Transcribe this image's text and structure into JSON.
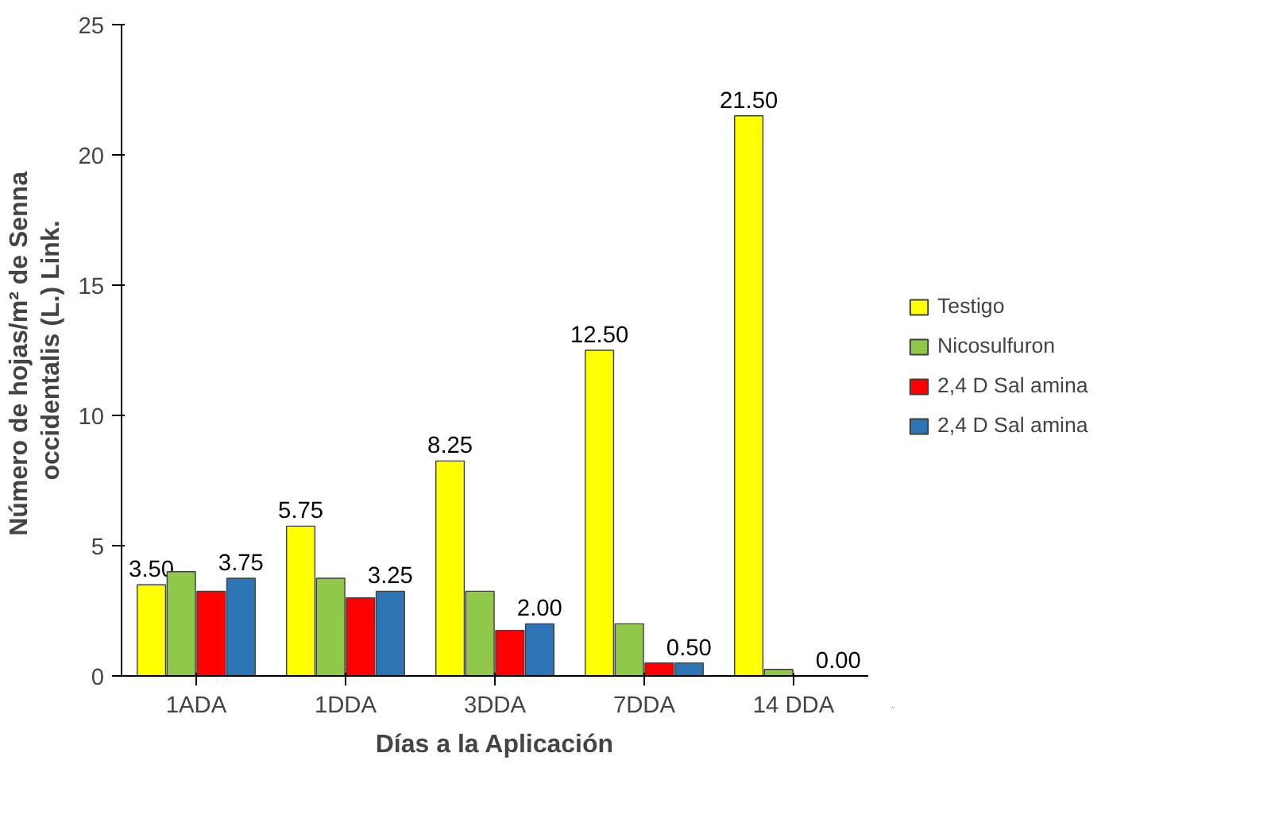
{
  "chart_data": {
    "type": "bar",
    "xlabel": "Días a la Aplicación",
    "ylabel": "Número de hojas/m² de  Senna\noccidentalis (L.) Link.",
    "categories": [
      "1ADA",
      "1DDA",
      "3DDA",
      "7DDA",
      "14 DDA"
    ],
    "series": [
      {
        "name": "Testigo",
        "color": "#ffff00",
        "values": [
          3.5,
          5.75,
          8.25,
          12.5,
          21.5
        ],
        "value_labels": [
          "3.50",
          "5.75",
          "8.25",
          "12.50",
          "21.50"
        ]
      },
      {
        "name": "Nicosulfuron",
        "color": "#8fc84a",
        "values": [
          4.0,
          3.75,
          3.25,
          2.0,
          0.25
        ]
      },
      {
        "name": "2,4 D Sal amina",
        "color": "#ff0000",
        "values": [
          3.25,
          3.0,
          1.75,
          0.5,
          0.0
        ]
      },
      {
        "name": "2,4 D Sal amina",
        "color": "#2e75b6",
        "values": [
          3.75,
          3.25,
          2.0,
          0.5,
          0.0
        ],
        "value_labels": [
          "3.75",
          "3.25",
          "2.00",
          "0.50",
          "0.00"
        ]
      }
    ],
    "ylim": [
      0,
      25
    ],
    "yticks": [
      0,
      5,
      10,
      15,
      20,
      25
    ],
    "grid": false,
    "legend": "right"
  }
}
